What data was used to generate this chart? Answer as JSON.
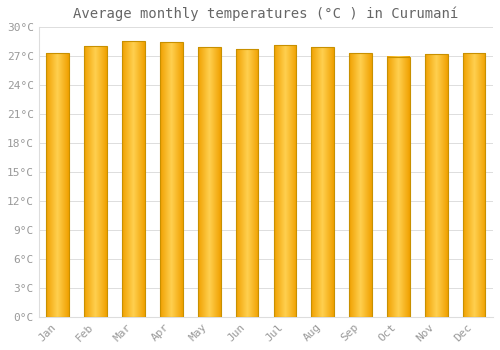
{
  "title": "Average monthly temperatures (°C ) in Curumaní",
  "months": [
    "Jan",
    "Feb",
    "Mar",
    "Apr",
    "May",
    "Jun",
    "Jul",
    "Aug",
    "Sep",
    "Oct",
    "Nov",
    "Dec"
  ],
  "values": [
    27.3,
    28.0,
    28.5,
    28.4,
    27.9,
    27.7,
    28.1,
    27.9,
    27.3,
    26.9,
    27.2,
    27.3
  ],
  "bar_color_center": "#FFD060",
  "bar_color_edge": "#F0A000",
  "bar_edge_color": "#C89000",
  "background_color": "#FFFFFF",
  "grid_color": "#DDDDDD",
  "text_color": "#999999",
  "title_color": "#666666",
  "ylim": [
    0,
    30
  ],
  "yticks": [
    0,
    3,
    6,
    9,
    12,
    15,
    18,
    21,
    24,
    27,
    30
  ],
  "ytick_labels": [
    "0°C",
    "3°C",
    "6°C",
    "9°C",
    "12°C",
    "15°C",
    "18°C",
    "21°C",
    "24°C",
    "27°C",
    "30°C"
  ],
  "title_fontsize": 10,
  "tick_fontsize": 8,
  "bar_width": 0.6
}
